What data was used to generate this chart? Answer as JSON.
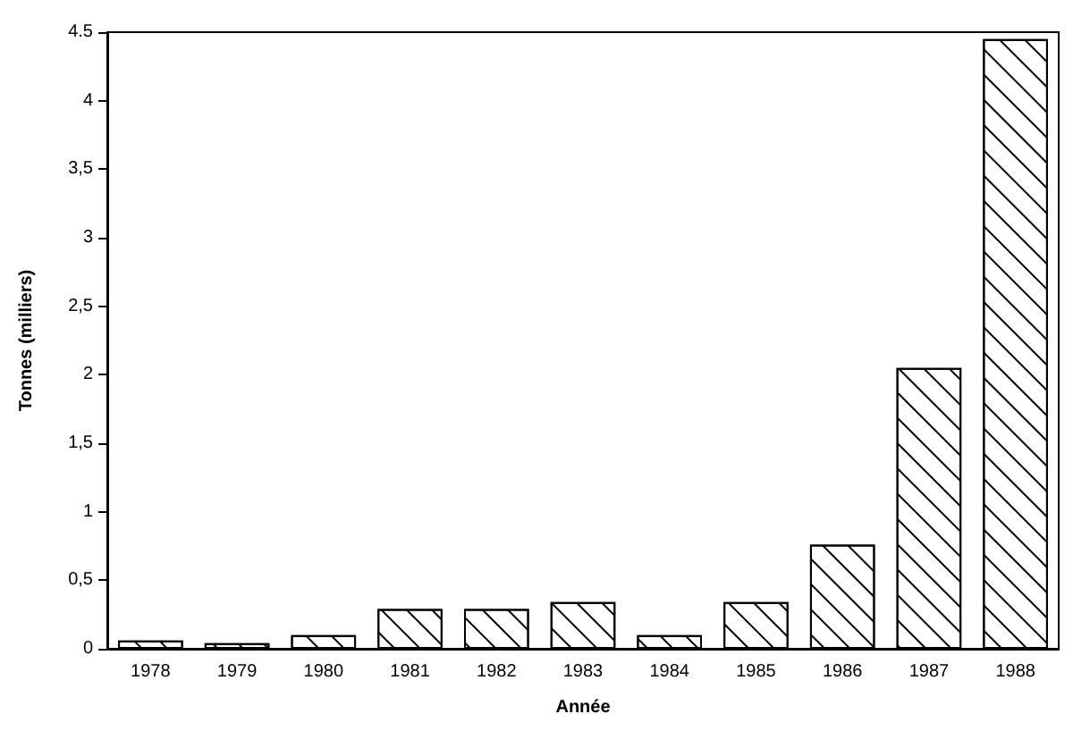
{
  "chart_data": {
    "type": "bar",
    "xlabel": "Année",
    "ylabel": "Tonnes (milliers)",
    "categories": [
      "1978",
      "1979",
      "1980",
      "1981",
      "1982",
      "1983",
      "1984",
      "1985",
      "1986",
      "1987",
      "1988"
    ],
    "values": [
      0.06,
      0.04,
      0.1,
      0.29,
      0.29,
      0.34,
      0.1,
      0.34,
      0.76,
      2.05,
      4.45
    ],
    "color": "#ffffff",
    "ylim": [
      0,
      4.5
    ],
    "yticks": [
      0,
      {
        "value": 0.5,
        "label": "0,5"
      },
      1,
      {
        "value": 1.5,
        "label": "1,5"
      },
      2,
      {
        "value": 2.5,
        "label": "2,5"
      },
      3,
      {
        "value": 3.5,
        "label": "3,5"
      },
      4,
      {
        "value": 4.5,
        "label": "4.5"
      }
    ]
  }
}
